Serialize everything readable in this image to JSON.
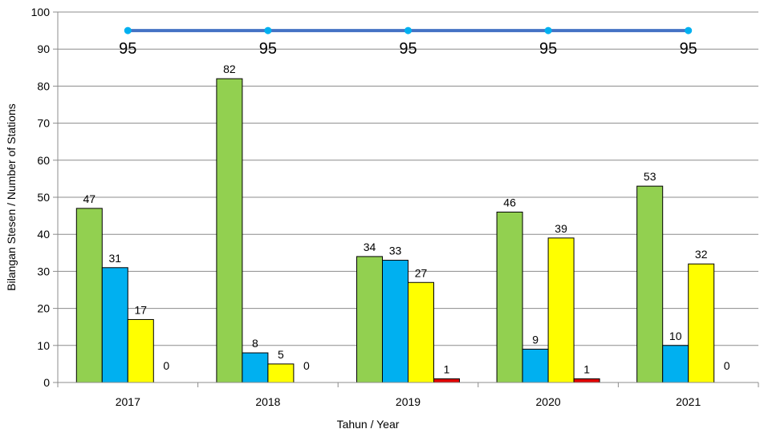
{
  "chart_data": {
    "type": "bar",
    "title": "",
    "xlabel": "Tahun / Year",
    "ylabel": "Bilangan Stesen / Number of Stations",
    "ylim": [
      0,
      100
    ],
    "yticks": [
      0,
      10,
      20,
      30,
      40,
      50,
      60,
      70,
      80,
      90,
      100
    ],
    "grid": true,
    "legend": "none",
    "categories": [
      "2017",
      "2018",
      "2019",
      "2020",
      "2021"
    ],
    "series": [
      {
        "color": "#92d050",
        "values": [
          47,
          82,
          34,
          46,
          53
        ],
        "labels": [
          "47",
          "82",
          "34",
          "46",
          "53"
        ]
      },
      {
        "color": "#00b0f0",
        "values": [
          31,
          8,
          33,
          9,
          10
        ],
        "labels": [
          "31",
          "8",
          "33",
          "9",
          "10"
        ]
      },
      {
        "color": "#ffff00",
        "values": [
          17,
          5,
          27,
          39,
          32
        ],
        "labels": [
          "17",
          "5",
          "27",
          "39",
          "32"
        ]
      },
      {
        "color": "#e00000",
        "values": [
          0,
          0,
          1,
          1,
          0
        ],
        "labels": [
          "0",
          "0",
          "1",
          "1",
          "0"
        ]
      }
    ],
    "line_series": {
      "type": "line",
      "color": "#4472c4",
      "marker_color": "#00b0f0",
      "values": [
        95,
        95,
        95,
        95,
        95
      ],
      "labels": [
        "95",
        "95",
        "95",
        "95",
        "95"
      ]
    }
  }
}
